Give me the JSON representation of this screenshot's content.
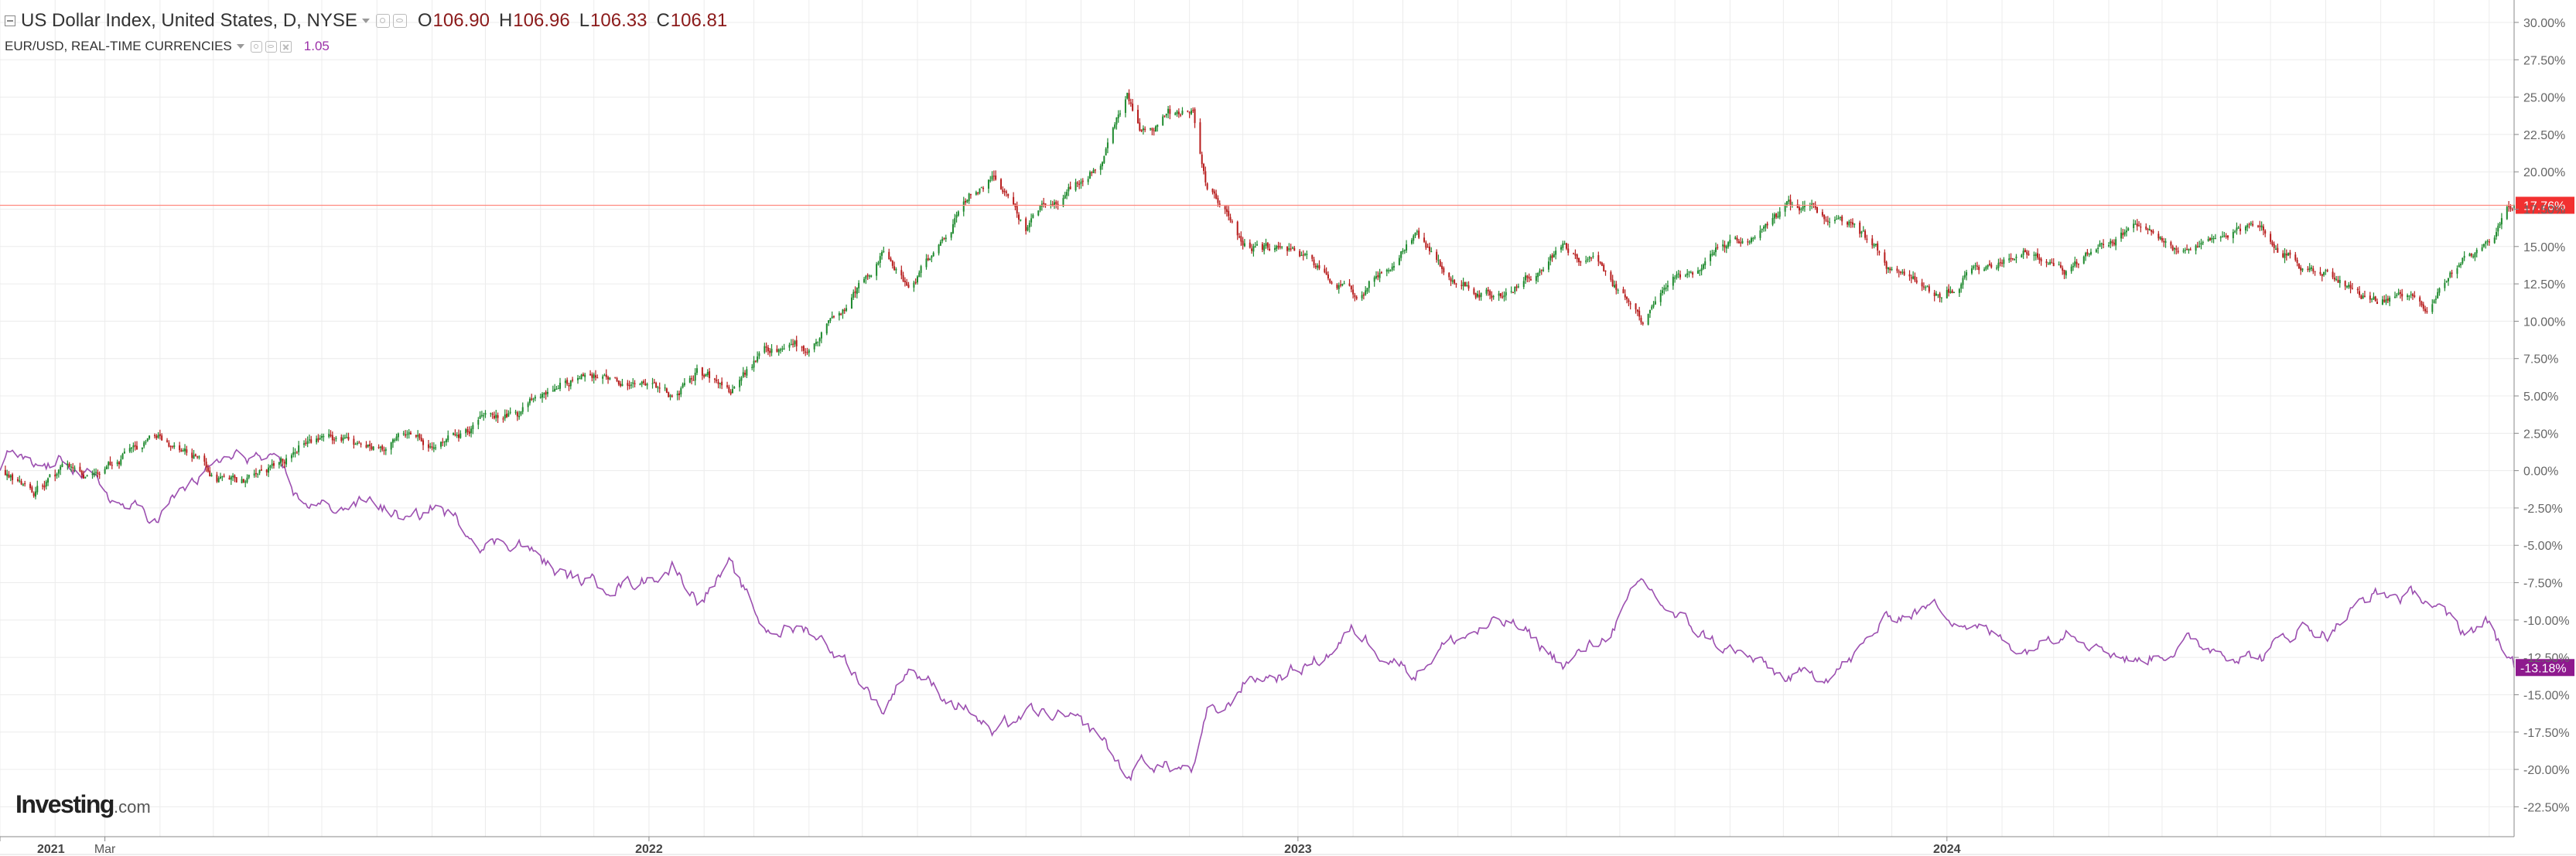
{
  "legend": {
    "main_symbol": "US Dollar Index, United States, D, NYSE",
    "open_label": "O",
    "open_value": "106.90",
    "high_label": "H",
    "high_value": "106.96",
    "low_label": "L",
    "low_value": "106.33",
    "close_label": "C",
    "close_value": "106.81",
    "compare_symbol": "EUR/USD, REAL-TIME CURRENCIES",
    "compare_value": "1.05"
  },
  "logo": {
    "brand": "Investing",
    "suffix": ".com"
  },
  "colors": {
    "up_candle": "#1e8a2e",
    "down_candle": "#b71c1c",
    "compare_line": "#9c4fb0",
    "last_price_line": "#ff8a80",
    "last_price_tag": "#f23030",
    "compare_tag": "#8e1a8e",
    "grid": "#ececec",
    "axis": "#888888"
  },
  "chart_data": {
    "type": "line",
    "title": "US Dollar Index, United States, D, NYSE",
    "y_axis_unit": "percent change",
    "ylim": [
      -24.5,
      31.5
    ],
    "y_ticks": [
      -22.5,
      -20,
      -17.5,
      -15,
      -12.5,
      -10,
      -7.5,
      -5,
      -2.5,
      0,
      2.5,
      5,
      7.5,
      10,
      12.5,
      15,
      17.5,
      20,
      22.5,
      25,
      27.5,
      30
    ],
    "x_range": [
      "2021-01-01",
      "2024-11-15"
    ],
    "x_ticks": [
      {
        "date": "2021-01-01",
        "label": "2021",
        "major": true
      },
      {
        "date": "2021-03-01",
        "label": "Mar",
        "major": false
      },
      {
        "date": "2022-01-01",
        "label": "2022",
        "major": true
      },
      {
        "date": "2023-01-01",
        "label": "2023",
        "major": true
      },
      {
        "date": "2024-01-01",
        "label": "2024",
        "major": true
      }
    ],
    "grid": true,
    "last_values": {
      "main": "17.76%",
      "compare": "-13.18%",
      "main_value": 17.76,
      "compare_value": -13.18
    },
    "series": [
      {
        "name": "US Dollar Index, United States, D, NYSE",
        "style": "candlestick",
        "anchors": [
          [
            "2021-01-01",
            0.0
          ],
          [
            "2021-01-06",
            -0.6
          ],
          [
            "2021-01-20",
            -1.2
          ],
          [
            "2021-02-10",
            0.2
          ],
          [
            "2021-02-25",
            -0.6
          ],
          [
            "2021-03-08",
            0.8
          ],
          [
            "2021-03-31",
            2.4
          ],
          [
            "2021-04-12",
            1.5
          ],
          [
            "2021-05-05",
            -0.5
          ],
          [
            "2021-05-25",
            -0.6
          ],
          [
            "2021-06-10",
            0.5
          ],
          [
            "2021-06-18",
            1.8
          ],
          [
            "2021-07-05",
            2.0
          ],
          [
            "2021-07-30",
            1.2
          ],
          [
            "2021-08-20",
            2.8
          ],
          [
            "2021-09-03",
            1.5
          ],
          [
            "2021-09-30",
            3.3
          ],
          [
            "2021-10-20",
            3.6
          ],
          [
            "2021-11-12",
            6.0
          ],
          [
            "2021-12-01",
            6.5
          ],
          [
            "2021-12-31",
            5.4
          ],
          [
            "2022-01-14",
            5.0
          ],
          [
            "2022-01-28",
            6.8
          ],
          [
            "2022-02-15",
            5.3
          ],
          [
            "2022-03-07",
            8.0
          ],
          [
            "2022-04-01",
            8.2
          ],
          [
            "2022-04-20",
            10.5
          ],
          [
            "2022-05-13",
            15.0
          ],
          [
            "2022-05-27",
            12.5
          ],
          [
            "2022-06-15",
            15.5
          ],
          [
            "2022-07-01",
            18.5
          ],
          [
            "2022-07-14",
            20.0
          ],
          [
            "2022-08-01",
            16.5
          ],
          [
            "2022-08-26",
            19.0
          ],
          [
            "2022-09-12",
            21.0
          ],
          [
            "2022-09-27",
            25.2
          ],
          [
            "2022-10-05",
            22.5
          ],
          [
            "2022-10-20",
            23.8
          ],
          [
            "2022-11-03",
            24.0
          ],
          [
            "2022-11-11",
            18.5
          ],
          [
            "2022-11-22",
            17.5
          ],
          [
            "2022-12-02",
            15.3
          ],
          [
            "2022-12-30",
            14.5
          ],
          [
            "2023-01-18",
            13.0
          ],
          [
            "2023-02-01",
            11.5
          ],
          [
            "2023-03-08",
            16.0
          ],
          [
            "2023-03-22",
            13.5
          ],
          [
            "2023-04-14",
            12.0
          ],
          [
            "2023-05-01",
            12.0
          ],
          [
            "2023-05-31",
            15.2
          ],
          [
            "2023-06-21",
            13.5
          ],
          [
            "2023-07-14",
            10.0
          ],
          [
            "2023-08-01",
            12.5
          ],
          [
            "2023-08-25",
            14.5
          ],
          [
            "2023-09-15",
            15.5
          ],
          [
            "2023-10-03",
            17.5
          ],
          [
            "2023-10-26",
            17.0
          ],
          [
            "2023-11-10",
            16.5
          ],
          [
            "2023-11-29",
            13.5
          ],
          [
            "2023-12-27",
            11.5
          ],
          [
            "2024-01-17",
            13.5
          ],
          [
            "2024-02-14",
            15.0
          ],
          [
            "2024-03-08",
            13.5
          ],
          [
            "2024-04-16",
            16.5
          ],
          [
            "2024-05-15",
            14.5
          ],
          [
            "2024-06-26",
            16.5
          ],
          [
            "2024-07-17",
            13.8
          ],
          [
            "2024-08-02",
            13.5
          ],
          [
            "2024-08-27",
            11.5
          ],
          [
            "2024-09-27",
            11.2
          ],
          [
            "2024-10-15",
            14.2
          ],
          [
            "2024-11-01",
            15.0
          ],
          [
            "2024-11-15",
            17.76
          ]
        ]
      },
      {
        "name": "EUR/USD, REAL-TIME CURRENCIES",
        "style": "line",
        "anchors": [
          [
            "2021-01-01",
            0.0
          ],
          [
            "2021-01-06",
            1.0
          ],
          [
            "2021-01-20",
            0.0
          ],
          [
            "2021-02-10",
            0.6
          ],
          [
            "2021-02-25",
            -1.0
          ],
          [
            "2021-03-08",
            -2.2
          ],
          [
            "2021-03-31",
            -3.2
          ],
          [
            "2021-04-12",
            -1.5
          ],
          [
            "2021-05-05",
            0.6
          ],
          [
            "2021-05-25",
            1.0
          ],
          [
            "2021-06-10",
            -0.3
          ],
          [
            "2021-06-18",
            -2.0
          ],
          [
            "2021-07-05",
            -2.5
          ],
          [
            "2021-07-30",
            -2.0
          ],
          [
            "2021-08-20",
            -3.6
          ],
          [
            "2021-09-03",
            -2.3
          ],
          [
            "2021-09-30",
            -4.8
          ],
          [
            "2021-10-20",
            -4.7
          ],
          [
            "2021-11-12",
            -7.0
          ],
          [
            "2021-12-01",
            -7.6
          ],
          [
            "2021-12-31",
            -7.3
          ],
          [
            "2022-01-14",
            -6.3
          ],
          [
            "2022-01-28",
            -8.5
          ],
          [
            "2022-02-15",
            -6.5
          ],
          [
            "2022-03-07",
            -10.6
          ],
          [
            "2022-04-01",
            -10.6
          ],
          [
            "2022-04-20",
            -12.5
          ],
          [
            "2022-05-13",
            -16.0
          ],
          [
            "2022-05-27",
            -13.0
          ],
          [
            "2022-06-15",
            -15.0
          ],
          [
            "2022-07-01",
            -16.0
          ],
          [
            "2022-07-14",
            -17.8
          ],
          [
            "2022-08-01",
            -16.2
          ],
          [
            "2022-08-26",
            -16.8
          ],
          [
            "2022-09-12",
            -17.8
          ],
          [
            "2022-09-27",
            -20.6
          ],
          [
            "2022-10-05",
            -19.5
          ],
          [
            "2022-10-20",
            -19.8
          ],
          [
            "2022-11-03",
            -20.0
          ],
          [
            "2022-11-11",
            -16.5
          ],
          [
            "2022-11-22",
            -16.0
          ],
          [
            "2022-12-02",
            -14.0
          ],
          [
            "2022-12-30",
            -13.5
          ],
          [
            "2023-01-18",
            -12.2
          ],
          [
            "2023-02-01",
            -10.7
          ],
          [
            "2023-03-08",
            -13.5
          ],
          [
            "2023-03-22",
            -11.8
          ],
          [
            "2023-04-14",
            -10.6
          ],
          [
            "2023-05-01",
            -10.2
          ],
          [
            "2023-05-31",
            -13.0
          ],
          [
            "2023-06-21",
            -11.3
          ],
          [
            "2023-07-14",
            -7.6
          ],
          [
            "2023-08-01",
            -9.8
          ],
          [
            "2023-08-25",
            -11.6
          ],
          [
            "2023-09-15",
            -12.8
          ],
          [
            "2023-10-03",
            -14.0
          ],
          [
            "2023-10-26",
            -13.5
          ],
          [
            "2023-11-10",
            -12.5
          ],
          [
            "2023-11-29",
            -9.8
          ],
          [
            "2023-12-27",
            -9.0
          ],
          [
            "2024-01-17",
            -10.5
          ],
          [
            "2024-02-14",
            -12.0
          ],
          [
            "2024-03-08",
            -10.3
          ],
          [
            "2024-04-16",
            -12.8
          ],
          [
            "2024-05-15",
            -11.5
          ],
          [
            "2024-06-26",
            -12.5
          ],
          [
            "2024-07-17",
            -10.4
          ],
          [
            "2024-08-02",
            -10.8
          ],
          [
            "2024-08-27",
            -8.3
          ],
          [
            "2024-09-27",
            -8.5
          ],
          [
            "2024-10-15",
            -10.8
          ],
          [
            "2024-11-01",
            -10.2
          ],
          [
            "2024-11-15",
            -13.18
          ]
        ]
      }
    ]
  }
}
